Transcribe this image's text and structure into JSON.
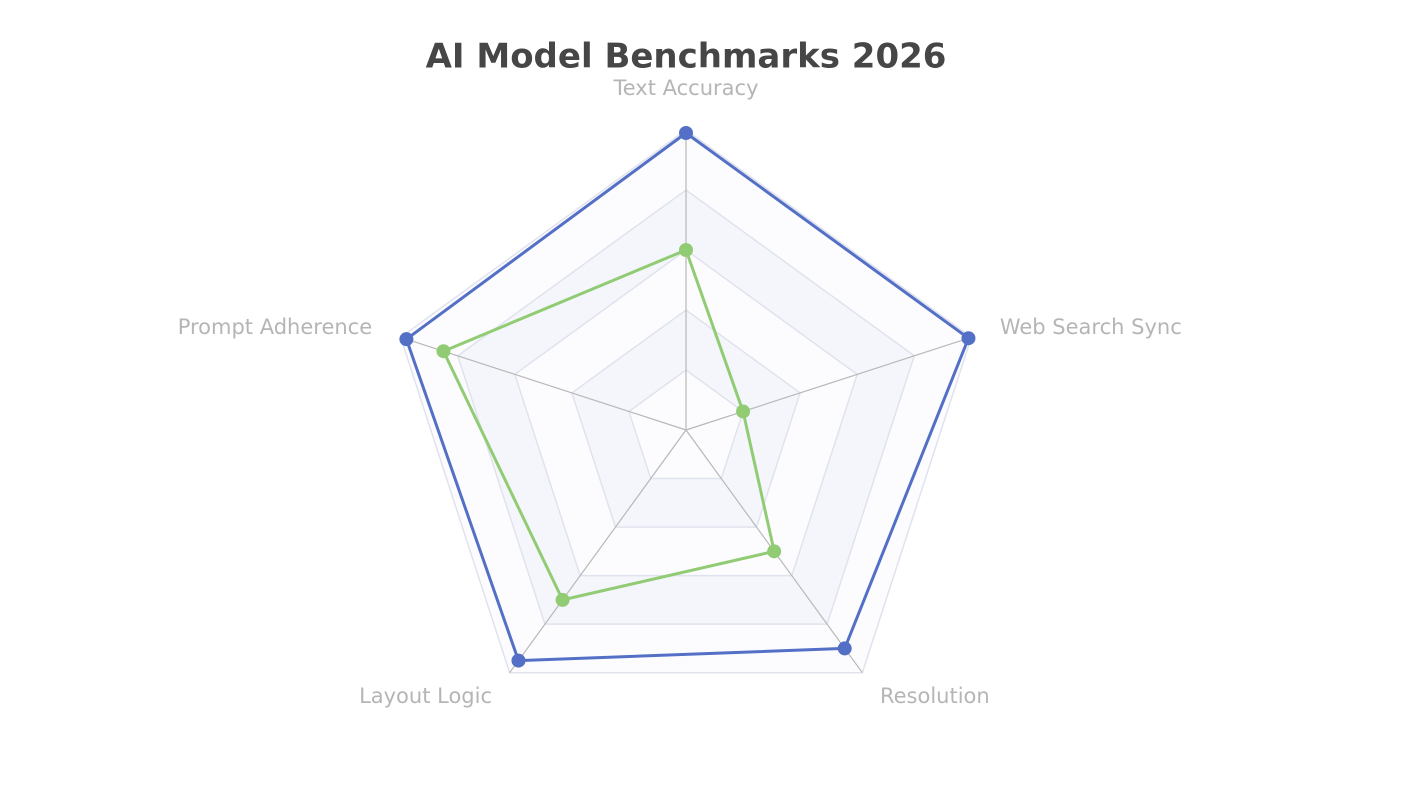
{
  "chart_data": {
    "type": "radar",
    "title": "AI Model Benchmarks 2026",
    "categories": [
      "Text Accuracy",
      "Web Search Sync",
      "Resolution",
      "Layout Logic",
      "Prompt Adherence"
    ],
    "rlim": [
      0,
      100
    ],
    "rgrid": [
      20,
      40,
      60,
      80,
      100
    ],
    "series": [
      {
        "color": "#5470c6",
        "values": [
          99,
          99,
          90,
          95,
          98
        ]
      },
      {
        "color": "#91cc75",
        "values": [
          60,
          20,
          50,
          70,
          85
        ]
      }
    ]
  }
}
